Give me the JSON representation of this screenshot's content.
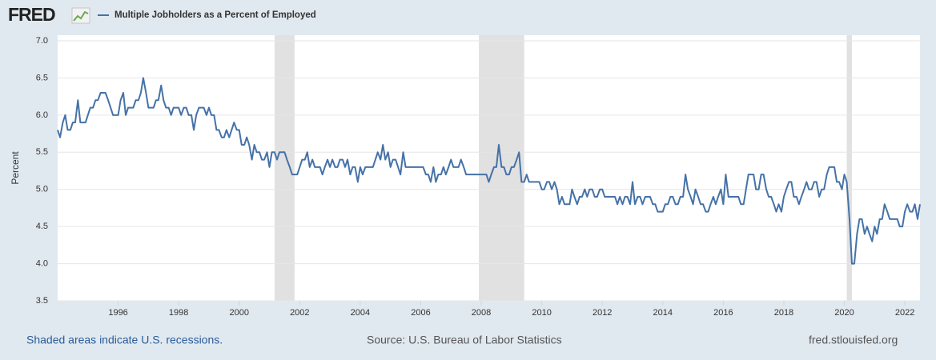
{
  "logo": "FRED",
  "chart_data": {
    "type": "line",
    "ylabel": "Percent",
    "note": "Shaded areas indicate U.S. recessions.",
    "source": "Source: U.S. Bureau of Labor Statistics",
    "site": "fred.stlouisfed.org",
    "xlim": [
      1994,
      2022.5
    ],
    "xticks": [
      1996,
      1998,
      2000,
      2002,
      2004,
      2006,
      2008,
      2010,
      2012,
      2014,
      2016,
      2018,
      2020,
      2022
    ],
    "ylim": [
      3.5,
      7
    ],
    "yticks": [
      3.5,
      {
        "value": 4,
        "label": "4.0"
      },
      4.5,
      {
        "value": 5,
        "label": "5.0"
      },
      5.5,
      {
        "value": 6,
        "label": "6.0"
      },
      6.5,
      {
        "value": 7,
        "label": "7.0"
      }
    ],
    "grid": true,
    "recessions": [
      [
        2001.17,
        2001.83
      ],
      [
        2007.92,
        2009.42
      ],
      [
        2020.08,
        2020.25
      ]
    ],
    "x": [
      1994,
      1994.08,
      1994.17,
      1994.25,
      1994.33,
      1994.42,
      1994.5,
      1994.58,
      1994.67,
      1994.75,
      1994.83,
      1994.92,
      1995,
      1995.08,
      1995.17,
      1995.25,
      1995.33,
      1995.42,
      1995.5,
      1995.58,
      1995.67,
      1995.75,
      1995.83,
      1995.92,
      1996,
      1996.08,
      1996.17,
      1996.25,
      1996.33,
      1996.42,
      1996.5,
      1996.58,
      1996.67,
      1996.75,
      1996.83,
      1996.92,
      1997,
      1997.08,
      1997.17,
      1997.25,
      1997.33,
      1997.42,
      1997.5,
      1997.58,
      1997.67,
      1997.75,
      1997.83,
      1997.92,
      1998,
      1998.08,
      1998.17,
      1998.25,
      1998.33,
      1998.42,
      1998.5,
      1998.58,
      1998.67,
      1998.75,
      1998.83,
      1998.92,
      1999,
      1999.08,
      1999.17,
      1999.25,
      1999.33,
      1999.42,
      1999.5,
      1999.58,
      1999.67,
      1999.75,
      1999.83,
      1999.92,
      2000,
      2000.08,
      2000.17,
      2000.25,
      2000.33,
      2000.42,
      2000.5,
      2000.58,
      2000.67,
      2000.75,
      2000.83,
      2000.92,
      2001,
      2001.08,
      2001.17,
      2001.25,
      2001.33,
      2001.42,
      2001.5,
      2001.58,
      2001.67,
      2001.75,
      2001.83,
      2001.92,
      2002,
      2002.08,
      2002.17,
      2002.25,
      2002.33,
      2002.42,
      2002.5,
      2002.58,
      2002.67,
      2002.75,
      2002.83,
      2002.92,
      2003,
      2003.08,
      2003.17,
      2003.25,
      2003.33,
      2003.42,
      2003.5,
      2003.58,
      2003.67,
      2003.75,
      2003.83,
      2003.92,
      2004,
      2004.08,
      2004.17,
      2004.25,
      2004.33,
      2004.42,
      2004.5,
      2004.58,
      2004.67,
      2004.75,
      2004.83,
      2004.92,
      2005,
      2005.08,
      2005.17,
      2005.25,
      2005.33,
      2005.42,
      2005.5,
      2005.58,
      2005.67,
      2005.75,
      2005.83,
      2005.92,
      2006,
      2006.08,
      2006.17,
      2006.25,
      2006.33,
      2006.42,
      2006.5,
      2006.58,
      2006.67,
      2006.75,
      2006.83,
      2006.92,
      2007,
      2007.08,
      2007.17,
      2007.25,
      2007.33,
      2007.42,
      2007.5,
      2007.58,
      2007.67,
      2007.75,
      2007.83,
      2007.92,
      2008,
      2008.08,
      2008.17,
      2008.25,
      2008.33,
      2008.42,
      2008.5,
      2008.58,
      2008.67,
      2008.75,
      2008.83,
      2008.92,
      2009,
      2009.08,
      2009.17,
      2009.25,
      2009.33,
      2009.42,
      2009.5,
      2009.58,
      2009.67,
      2009.75,
      2009.83,
      2009.92,
      2010,
      2010.08,
      2010.17,
      2010.25,
      2010.33,
      2010.42,
      2010.5,
      2010.58,
      2010.67,
      2010.75,
      2010.83,
      2010.92,
      2011,
      2011.08,
      2011.17,
      2011.25,
      2011.33,
      2011.42,
      2011.5,
      2011.58,
      2011.67,
      2011.75,
      2011.83,
      2011.92,
      2012,
      2012.08,
      2012.17,
      2012.25,
      2012.33,
      2012.42,
      2012.5,
      2012.58,
      2012.67,
      2012.75,
      2012.83,
      2012.92,
      2013,
      2013.08,
      2013.17,
      2013.25,
      2013.33,
      2013.42,
      2013.5,
      2013.58,
      2013.67,
      2013.75,
      2013.83,
      2013.92,
      2014,
      2014.08,
      2014.17,
      2014.25,
      2014.33,
      2014.42,
      2014.5,
      2014.58,
      2014.67,
      2014.75,
      2014.83,
      2014.92,
      2015,
      2015.08,
      2015.17,
      2015.25,
      2015.33,
      2015.42,
      2015.5,
      2015.58,
      2015.67,
      2015.75,
      2015.83,
      2015.92,
      2016,
      2016.08,
      2016.17,
      2016.25,
      2016.33,
      2016.42,
      2016.5,
      2016.58,
      2016.67,
      2016.75,
      2016.83,
      2016.92,
      2017,
      2017.08,
      2017.17,
      2017.25,
      2017.33,
      2017.42,
      2017.5,
      2017.58,
      2017.67,
      2017.75,
      2017.83,
      2017.92,
      2018,
      2018.08,
      2018.17,
      2018.25,
      2018.33,
      2018.42,
      2018.5,
      2018.58,
      2018.67,
      2018.75,
      2018.83,
      2018.92,
      2019,
      2019.08,
      2019.17,
      2019.25,
      2019.33,
      2019.42,
      2019.5,
      2019.58,
      2019.67,
      2019.75,
      2019.83,
      2019.92,
      2020,
      2020.08,
      2020.17,
      2020.25,
      2020.33,
      2020.42,
      2020.5,
      2020.58,
      2020.67,
      2020.75,
      2020.83,
      2020.92,
      2021,
      2021.08,
      2021.17,
      2021.25,
      2021.33,
      2021.42,
      2021.5,
      2021.58,
      2021.67,
      2021.75,
      2021.83,
      2021.92,
      2022,
      2022.08,
      2022.17,
      2022.25,
      2022.33,
      2022.42,
      2022.5
    ],
    "series": [
      {
        "name": "Multiple Jobholders as a Percent of Employed",
        "color": "#4572a7",
        "values": [
          5.8,
          5.7,
          5.9,
          6.0,
          5.8,
          5.8,
          5.9,
          5.9,
          6.2,
          5.9,
          5.9,
          5.9,
          6.0,
          6.1,
          6.1,
          6.2,
          6.2,
          6.3,
          6.3,
          6.3,
          6.2,
          6.1,
          6.0,
          6.0,
          6.0,
          6.2,
          6.3,
          6.0,
          6.1,
          6.1,
          6.1,
          6.2,
          6.2,
          6.3,
          6.5,
          6.3,
          6.1,
          6.1,
          6.1,
          6.2,
          6.2,
          6.4,
          6.2,
          6.1,
          6.1,
          6.0,
          6.1,
          6.1,
          6.1,
          6.0,
          6.1,
          6.1,
          6.0,
          6.0,
          5.8,
          6.0,
          6.1,
          6.1,
          6.1,
          6.0,
          6.1,
          6.0,
          6.0,
          5.8,
          5.8,
          5.7,
          5.7,
          5.8,
          5.7,
          5.8,
          5.9,
          5.8,
          5.8,
          5.6,
          5.6,
          5.7,
          5.6,
          5.4,
          5.6,
          5.5,
          5.5,
          5.4,
          5.4,
          5.5,
          5.3,
          5.5,
          5.5,
          5.4,
          5.5,
          5.5,
          5.5,
          5.4,
          5.3,
          5.2,
          5.2,
          5.2,
          5.3,
          5.4,
          5.4,
          5.5,
          5.3,
          5.4,
          5.3,
          5.3,
          5.3,
          5.2,
          5.3,
          5.4,
          5.3,
          5.4,
          5.3,
          5.3,
          5.4,
          5.4,
          5.3,
          5.4,
          5.2,
          5.3,
          5.3,
          5.1,
          5.3,
          5.2,
          5.3,
          5.3,
          5.3,
          5.3,
          5.4,
          5.5,
          5.4,
          5.6,
          5.4,
          5.5,
          5.3,
          5.4,
          5.4,
          5.3,
          5.2,
          5.5,
          5.3,
          5.3,
          5.3,
          5.3,
          5.3,
          5.3,
          5.3,
          5.3,
          5.2,
          5.2,
          5.1,
          5.3,
          5.1,
          5.2,
          5.2,
          5.3,
          5.2,
          5.3,
          5.4,
          5.3,
          5.3,
          5.3,
          5.4,
          5.3,
          5.2,
          5.2,
          5.2,
          5.2,
          5.2,
          5.2,
          5.2,
          5.2,
          5.2,
          5.1,
          5.2,
          5.3,
          5.3,
          5.6,
          5.3,
          5.3,
          5.2,
          5.2,
          5.3,
          5.3,
          5.4,
          5.5,
          5.1,
          5.1,
          5.2,
          5.1,
          5.1,
          5.1,
          5.1,
          5.1,
          5.0,
          5.0,
          5.1,
          5.1,
          5.0,
          5.1,
          5.0,
          4.8,
          4.9,
          4.8,
          4.8,
          4.8,
          5.0,
          4.9,
          4.8,
          4.9,
          4.9,
          5.0,
          4.9,
          5.0,
          5.0,
          4.9,
          4.9,
          5.0,
          5.0,
          4.9,
          4.9,
          4.9,
          4.9,
          4.9,
          4.8,
          4.9,
          4.8,
          4.9,
          4.9,
          4.8,
          5.1,
          4.8,
          4.9,
          4.9,
          4.8,
          4.9,
          4.9,
          4.9,
          4.8,
          4.8,
          4.7,
          4.7,
          4.7,
          4.8,
          4.8,
          4.9,
          4.9,
          4.8,
          4.8,
          4.9,
          4.9,
          5.2,
          5.0,
          4.9,
          4.8,
          5.0,
          4.9,
          4.8,
          4.8,
          4.7,
          4.7,
          4.8,
          4.9,
          4.8,
          4.9,
          5.0,
          4.8,
          5.2,
          4.9,
          4.9,
          4.9,
          4.9,
          4.9,
          4.8,
          4.8,
          5.0,
          5.2,
          5.2,
          5.2,
          5.0,
          5.0,
          5.2,
          5.2,
          5.0,
          4.9,
          4.9,
          4.8,
          4.7,
          4.8,
          4.7,
          4.9,
          5.0,
          5.1,
          5.1,
          4.9,
          4.9,
          4.8,
          4.9,
          5.0,
          5.1,
          5.0,
          5.0,
          5.1,
          5.1,
          4.9,
          5.0,
          5.0,
          5.2,
          5.3,
          5.3,
          5.3,
          5.1,
          5.1,
          5.0,
          5.2,
          5.1,
          4.6,
          4.0,
          4.0,
          4.4,
          4.6,
          4.6,
          4.4,
          4.5,
          4.4,
          4.3,
          4.5,
          4.4,
          4.6,
          4.6,
          4.8,
          4.7,
          4.6,
          4.6,
          4.6,
          4.6,
          4.5,
          4.5,
          4.7,
          4.8,
          4.7,
          4.7,
          4.8,
          4.6,
          4.8
        ]
      }
    ]
  }
}
